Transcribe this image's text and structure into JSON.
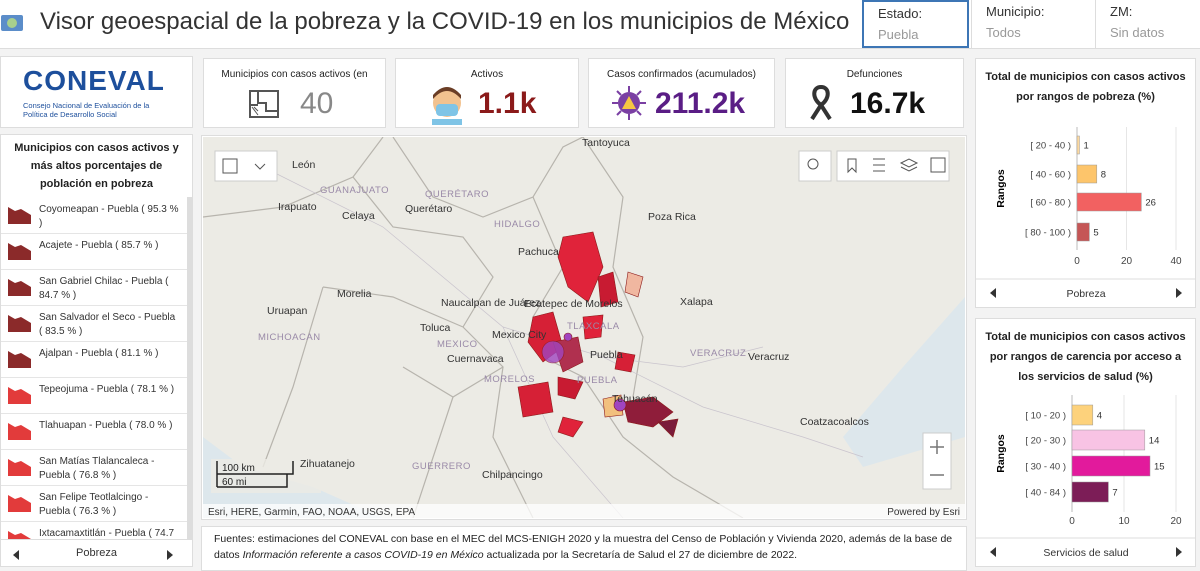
{
  "header": {
    "title": "Visor geoespacial de la pobreza y la COVID-19 en los municipios de México",
    "filters": [
      {
        "label": "Estado:",
        "value": "Puebla"
      },
      {
        "label": "Municipio:",
        "value": "Todos"
      },
      {
        "label": "ZM:",
        "value": "Sin datos"
      }
    ]
  },
  "logo": {
    "name": "CONEVAL",
    "subtitle": "Consejo Nacional de Evaluación de la Política de Desarrollo Social"
  },
  "ranking": {
    "title": "Municipios con casos activos y más altos porcentajes de población en pobreza",
    "items": [
      "Coyomeapan - Puebla ( 95.3 % )",
      "Acajete - Puebla ( 85.7 % )",
      "San Gabriel Chilac - Puebla ( 84.7 % )",
      "San Salvador el Seco - Puebla ( 83.5 % )",
      "Ajalpan - Puebla ( 81.1 % )",
      "Tepeojuma - Puebla ( 78.1 % )",
      "Tlahuapan - Puebla ( 78.0 % )",
      "San Matías Tlalancaleca - Puebla ( 76.8 % )",
      "San Felipe Teotlalcingo - Puebla ( 76.3 % )",
      "Ixtacamaxtitlán - Puebla ( 74.7"
    ],
    "footer": "Pobreza"
  },
  "indicators": [
    {
      "label": "Municipios con casos activos (en",
      "value": "40"
    },
    {
      "label": "Activos",
      "value": "1.1k"
    },
    {
      "label": "Casos confirmados (acumulados)",
      "value": "211.2k"
    },
    {
      "label": "Defunciones",
      "value": "16.7k"
    }
  ],
  "map": {
    "labels": [
      "León",
      "GUANAJUATO",
      "Irapuato",
      "Celaya",
      "Querétaro",
      "QUERÉTARO",
      "HIDALGO",
      "Tantoyuca",
      "Poza Rica",
      "Pachuca",
      "Morelia",
      "Naucalpan de Juárez",
      "Ecatepec de Morelos",
      "TLAXCALA",
      "Xalapa",
      "Uruapan",
      "Toluca",
      "Mexico City",
      "MICHOACAN",
      "MEXICO",
      "Cuernavaca",
      "Puebla",
      "VERACRUZ",
      "Veracruz",
      "PUEBLA",
      "MORELOS",
      "Tehuacán",
      "Coatzacoalcos",
      "GUERRERO",
      "Chilpancingo",
      "Zihuatanejo"
    ],
    "scale_km": "100 km",
    "scale_mi": "60 mi",
    "attribution": "Esri, HERE, Garmin, FAO, NOAA, USGS, EPA",
    "powered": "Powered by Esri"
  },
  "sources": {
    "before": "Fuentes: estimaciones del CONEVAL con base en el MEC del MCS-ENIGH 2020 y la muestra del Censo de Población y Vivienda 2020, además de la base de datos ",
    "italic": "Información referente a casos COVID-19 en México",
    "after": " actualizada por la Secretaría de Salud el 27 de diciembre de 2022."
  },
  "charts": [
    {
      "type": "bar",
      "title": "Total de municipios con casos activos por rangos de pobreza (%)",
      "y_label": "Rangos",
      "categories": [
        "[ 20 - 40 )",
        "[ 40 - 60 )",
        "[ 60 - 80 )",
        "[ 80 - 100 )"
      ],
      "values": [
        1,
        8,
        26,
        5
      ],
      "colors": [
        "#fcd9a0",
        "#fdc56b",
        "#f26161",
        "#c55656"
      ],
      "xlim": [
        0,
        40
      ],
      "xticks": [
        0,
        20,
        40
      ],
      "footer": "Pobreza"
    },
    {
      "type": "bar",
      "title": "Total de municipios con casos activos por rangos de carencia por acceso a los servicios de salud (%)",
      "y_label": "Rangos",
      "categories": [
        "[ 10 - 20 )",
        "[ 20 - 30 )",
        "[ 30 - 40 )",
        "[ 40 - 84 )"
      ],
      "values": [
        4,
        14,
        15,
        7
      ],
      "colors": [
        "#fdd27c",
        "#f8c3e4",
        "#e21a9c",
        "#7c1d57"
      ],
      "xlim": [
        0,
        20
      ],
      "xticks": [
        0,
        10,
        20
      ],
      "footer": "Servicios de salud"
    }
  ]
}
